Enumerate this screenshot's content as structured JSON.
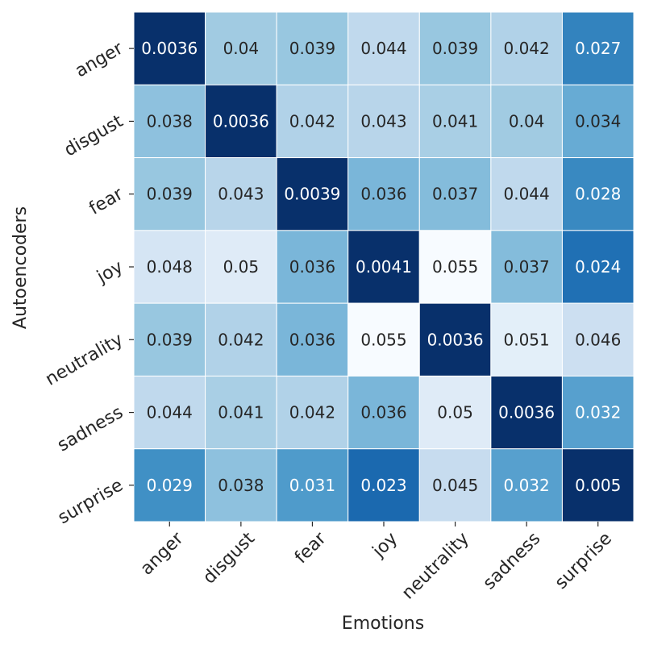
{
  "chart_data": {
    "type": "heatmap",
    "xlabel": "Emotions",
    "ylabel": "Autoencoders",
    "x_categories": [
      "anger",
      "disgust",
      "fear",
      "joy",
      "neutrality",
      "sadness",
      "surprise"
    ],
    "y_categories": [
      "anger",
      "disgust",
      "fear",
      "joy",
      "neutrality",
      "sadness",
      "surprise"
    ],
    "values": [
      [
        0.0036,
        0.04,
        0.039,
        0.044,
        0.039,
        0.042,
        0.027
      ],
      [
        0.038,
        0.0036,
        0.042,
        0.043,
        0.041,
        0.04,
        0.034
      ],
      [
        0.039,
        0.043,
        0.0039,
        0.036,
        0.037,
        0.044,
        0.028
      ],
      [
        0.048,
        0.05,
        0.036,
        0.0041,
        0.055,
        0.037,
        0.024
      ],
      [
        0.039,
        0.042,
        0.036,
        0.055,
        0.0036,
        0.051,
        0.046
      ],
      [
        0.044,
        0.041,
        0.042,
        0.036,
        0.05,
        0.0036,
        0.032
      ],
      [
        0.029,
        0.038,
        0.031,
        0.023,
        0.045,
        0.032,
        0.005
      ]
    ],
    "value_labels": [
      [
        "0.0036",
        "0.04",
        "0.039",
        "0.044",
        "0.039",
        "0.042",
        "0.027"
      ],
      [
        "0.038",
        "0.0036",
        "0.042",
        "0.043",
        "0.041",
        "0.04",
        "0.034"
      ],
      [
        "0.039",
        "0.043",
        "0.0039",
        "0.036",
        "0.037",
        "0.044",
        "0.028"
      ],
      [
        "0.048",
        "0.05",
        "0.036",
        "0.0041",
        "0.055",
        "0.037",
        "0.024"
      ],
      [
        "0.039",
        "0.042",
        "0.036",
        "0.055",
        "0.0036",
        "0.051",
        "0.046"
      ],
      [
        "0.044",
        "0.041",
        "0.042",
        "0.036",
        "0.05",
        "0.0036",
        "0.032"
      ],
      [
        "0.029",
        "0.038",
        "0.031",
        "0.023",
        "0.045",
        "0.032",
        "0.005"
      ]
    ],
    "colormap": "Blues_reversed",
    "color_low": "#08306b",
    "color_high": "#f7fbff",
    "colorbar": false,
    "grid": false
  }
}
